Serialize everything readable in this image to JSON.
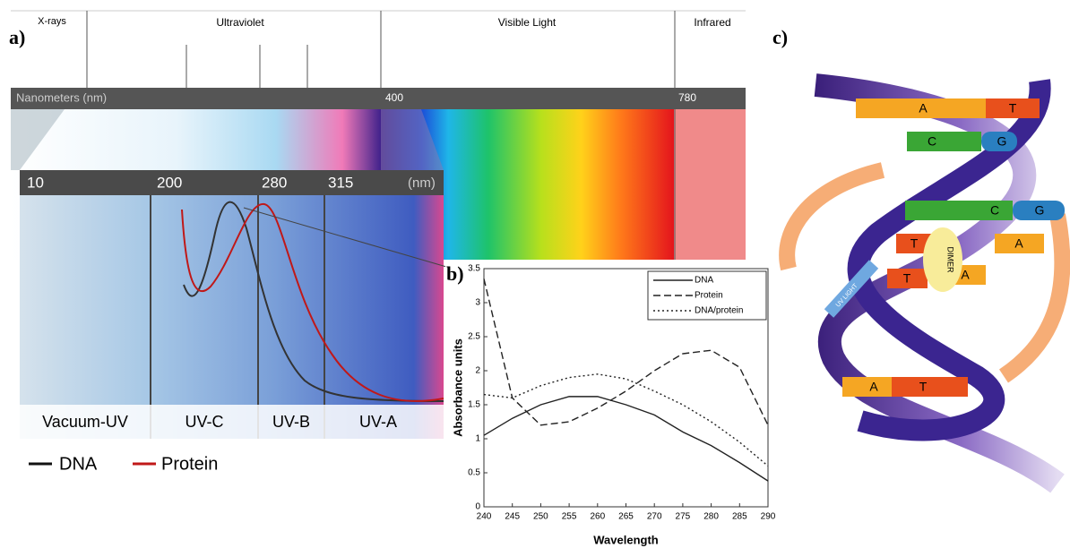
{
  "panel_labels": [
    "a)",
    "b)",
    "c)"
  ],
  "spectrum": {
    "regions": [
      "X-rays",
      "Ultraviolet",
      "Visible Light",
      "Infrared"
    ],
    "scale_label": "Nanometers (nm)",
    "scale_ticks": [
      "400",
      "780"
    ],
    "uv_ticks": [
      "10",
      "200",
      "280",
      "315",
      "(nm)"
    ],
    "bands": [
      "Vacuum-UV",
      "UV-C",
      "UV-B",
      "UV-A"
    ],
    "legend": [
      "DNA",
      "Protein"
    ]
  },
  "chart_data": {
    "type": "line",
    "x_label": "Wavelength",
    "y_label": "Absorbance units",
    "x": [
      240,
      245,
      250,
      255,
      260,
      265,
      270,
      275,
      280,
      285,
      290
    ],
    "xlim": [
      240,
      290
    ],
    "xticks": [
      240,
      245,
      250,
      255,
      260,
      265,
      270,
      275,
      280,
      285,
      290
    ],
    "ylim": [
      0,
      3.5
    ],
    "yticks": [
      0,
      0.5,
      1,
      1.5,
      2,
      2.5,
      3,
      3.5
    ],
    "legend_position": "upper right",
    "series": [
      {
        "name": "DNA",
        "color": "#222222",
        "dash": "solid",
        "values": [
          1.05,
          1.3,
          1.5,
          1.62,
          1.62,
          1.5,
          1.35,
          1.1,
          0.9,
          0.65,
          0.38
        ]
      },
      {
        "name": "Protein",
        "color": "#222222",
        "dash": "dashed",
        "values": [
          3.35,
          1.6,
          1.2,
          1.25,
          1.45,
          1.7,
          2.0,
          2.25,
          2.3,
          2.05,
          1.2
        ]
      },
      {
        "name": "DNA/protein",
        "color": "#222222",
        "dash": "dotted",
        "values": [
          1.65,
          1.6,
          1.78,
          1.9,
          1.95,
          1.88,
          1.7,
          1.5,
          1.25,
          0.95,
          0.6
        ]
      }
    ]
  },
  "helix": {
    "bases": [
      "A",
      "T",
      "C",
      "G",
      "C",
      "G",
      "T",
      "A",
      "T",
      "A",
      "A",
      "T"
    ],
    "dimer": "DIMER",
    "uv_light": "UV LIGHT"
  }
}
